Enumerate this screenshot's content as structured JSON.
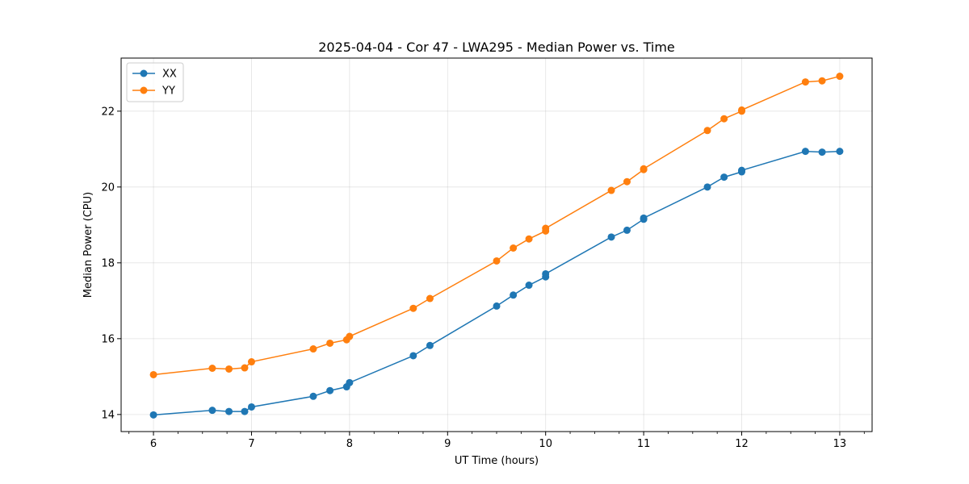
{
  "chart_data": {
    "type": "line",
    "title": "2025-04-04 - Cor 47 - LWA295 - Median Power vs. Time",
    "xlabel": "UT Time (hours)",
    "ylabel": "Median Power (CPU)",
    "xlim": [
      5.67,
      13.33
    ],
    "ylim": [
      13.55,
      23.4
    ],
    "xticks": [
      6,
      7,
      8,
      9,
      10,
      11,
      12,
      13
    ],
    "xtick_labels": [
      "6",
      "7",
      "8",
      "9",
      "10",
      "11",
      "12",
      "13"
    ],
    "xminor_step": 0.25,
    "yticks": [
      14,
      16,
      18,
      20,
      22
    ],
    "ytick_labels": [
      "14",
      "16",
      "18",
      "20",
      "22"
    ],
    "grid": true,
    "legend": "top-left",
    "series": [
      {
        "name": "XX",
        "color": "#1f77b4",
        "x": [
          6.0,
          6.6,
          6.77,
          6.93,
          7.0,
          7.63,
          7.8,
          7.97,
          8.0,
          8.65,
          8.82,
          9.5,
          9.67,
          9.83,
          10.0,
          10.0,
          10.67,
          10.83,
          11.0,
          11.0,
          11.65,
          11.82,
          12.0,
          12.0,
          12.65,
          12.82,
          13.0
        ],
        "y": [
          13.99,
          14.11,
          14.08,
          14.08,
          14.2,
          14.48,
          14.63,
          14.73,
          14.84,
          15.55,
          15.82,
          16.86,
          17.15,
          17.41,
          17.63,
          17.71,
          18.68,
          18.86,
          19.15,
          19.18,
          20.0,
          20.26,
          20.4,
          20.44,
          20.94,
          20.92,
          20.94
        ]
      },
      {
        "name": "YY",
        "color": "#ff7f0e",
        "x": [
          6.0,
          6.6,
          6.77,
          6.93,
          7.0,
          7.63,
          7.8,
          7.97,
          8.0,
          8.65,
          8.82,
          9.5,
          9.67,
          9.83,
          10.0,
          10.0,
          10.67,
          10.83,
          11.0,
          11.0,
          11.65,
          11.82,
          12.0,
          12.0,
          12.65,
          12.82,
          13.0
        ],
        "y": [
          15.05,
          15.22,
          15.2,
          15.23,
          15.39,
          15.73,
          15.88,
          15.97,
          16.06,
          16.8,
          17.06,
          18.05,
          18.39,
          18.63,
          18.84,
          18.91,
          19.91,
          20.14,
          20.46,
          20.48,
          21.49,
          21.8,
          22.0,
          22.03,
          22.77,
          22.8,
          22.92
        ]
      }
    ]
  }
}
